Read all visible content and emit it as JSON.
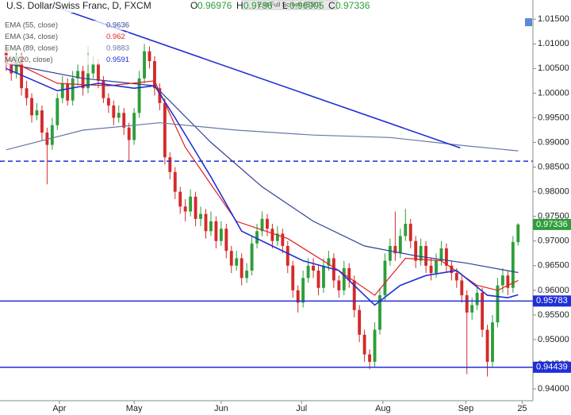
{
  "exit_fullscreen": "Exit Full Screen (ESC)",
  "chart_data": {
    "type": "candlestick",
    "title": "U.S. Dollar/Swiss Franc, D, FXCM",
    "ohlc_prefix": [
      "O",
      "H",
      "L",
      "C"
    ],
    "up_color": "#2e9e3a",
    "down_color": "#d42a2a",
    "grid": false,
    "xlim": [
      -1.2,
      102.9
    ],
    "ylim": [
      0.9376,
      1.0189
    ],
    "xticks": [
      {
        "value": 10.4,
        "label": "Apr"
      },
      {
        "value": 25,
        "label": "May"
      },
      {
        "value": 42,
        "label": "Jun"
      },
      {
        "value": 57.7,
        "label": "Jul"
      },
      {
        "value": 73.6,
        "label": "Aug"
      },
      {
        "value": 89.8,
        "label": "Sep"
      },
      {
        "value": 100.8,
        "label": "25"
      }
    ],
    "yticks": [
      {
        "value": 0.94,
        "label": "0.94000"
      },
      {
        "value": 0.945,
        "label": "0.94500"
      },
      {
        "value": 0.95,
        "label": "0.95000"
      },
      {
        "value": 0.955,
        "label": "0.95500"
      },
      {
        "value": 0.96,
        "label": "0.96000"
      },
      {
        "value": 0.965,
        "label": "0.96500"
      },
      {
        "value": 0.97,
        "label": "0.97000"
      },
      {
        "value": 0.975,
        "label": "0.97500"
      },
      {
        "value": 0.98,
        "label": "0.98000"
      },
      {
        "value": 0.985,
        "label": "0.98500"
      },
      {
        "value": 0.99,
        "label": "0.99000"
      },
      {
        "value": 0.995,
        "label": "0.99500"
      },
      {
        "value": 1.0,
        "label": "1.00000"
      },
      {
        "value": 1.005,
        "label": "1.00500"
      },
      {
        "value": 1.01,
        "label": "1.01000"
      },
      {
        "value": 1.015,
        "label": "1.01500"
      }
    ],
    "open": [
      1.0085,
      1.006,
      1.004,
      1.0075,
      1.001,
      0.999,
      0.9955,
      0.9965,
      0.992,
      0.9895,
      0.9935,
      0.999,
      1.002,
      0.9985,
      1.003,
      1.0045,
      1.001,
      1.004,
      1.006,
      1.0025,
      0.999,
      0.9975,
      0.995,
      0.996,
      0.993,
      0.9905,
      0.996,
      1.003,
      1.0085,
      1.0065,
      1.001,
      0.998,
      0.987,
      0.984,
      0.98,
      0.977,
      0.976,
      0.979,
      0.9745,
      0.9755,
      0.972,
      0.974,
      0.97,
      0.9725,
      0.968,
      0.965,
      0.9665,
      0.9625,
      0.964,
      0.9695,
      0.972,
      0.9745,
      0.9725,
      0.97,
      0.9715,
      0.969,
      0.965,
      0.96,
      0.9575,
      0.9625,
      0.965,
      0.964,
      0.9605,
      0.965,
      0.9665,
      0.962,
      0.96,
      0.9645,
      0.962,
      0.956,
      0.951,
      0.947,
      0.9455,
      0.952,
      0.959,
      0.966,
      0.969,
      0.9675,
      0.971,
      0.9735,
      0.97,
      0.966,
      0.969,
      0.965,
      0.9635,
      0.966,
      0.9685,
      0.965,
      0.9635,
      0.962,
      0.959,
      0.9555,
      0.957,
      0.9595,
      0.952,
      0.9455,
      0.9535,
      0.961,
      0.963,
      0.9605,
      0.96976
    ],
    "high": [
      1.01,
      1.0075,
      1.009,
      1.0085,
      1.0025,
      1.0,
      0.998,
      0.9975,
      0.993,
      0.995,
      1.0,
      1.0035,
      1.003,
      1.0045,
      1.006,
      1.0055,
      1.0095,
      1.0075,
      1.007,
      1.0035,
      1.0,
      0.9985,
      0.9975,
      0.997,
      0.994,
      0.997,
      1.0045,
      1.01,
      1.0095,
      1.0075,
      1.002,
      0.999,
      0.988,
      0.985,
      0.981,
      0.9785,
      0.9805,
      0.98,
      0.977,
      0.9765,
      0.976,
      0.975,
      0.974,
      0.9735,
      0.969,
      0.968,
      0.9675,
      0.9655,
      0.971,
      0.9735,
      0.976,
      0.9755,
      0.9735,
      0.973,
      0.9725,
      0.97,
      0.966,
      0.961,
      0.964,
      0.9665,
      0.9665,
      0.965,
      0.9665,
      0.968,
      0.9675,
      0.963,
      0.966,
      0.9655,
      0.963,
      0.957,
      0.952,
      0.948,
      0.9535,
      0.9605,
      0.9675,
      0.9705,
      0.976,
      0.9725,
      0.9765,
      0.9745,
      0.971,
      0.9705,
      0.97,
      0.9665,
      0.9675,
      0.97,
      0.9695,
      0.966,
      0.9645,
      0.963,
      0.96,
      0.9585,
      0.961,
      0.9605,
      0.953,
      0.955,
      0.9625,
      0.9645,
      0.964,
      0.971,
      0.9736
    ],
    "low": [
      1.0045,
      1.0025,
      1.003,
      0.9995,
      0.9975,
      0.994,
      0.9945,
      0.9905,
      0.9815,
      0.9885,
      0.9925,
      0.998,
      0.9975,
      0.9975,
      1.0015,
      0.9995,
      1.0,
      1.003,
      1.001,
      0.998,
      0.996,
      0.9935,
      0.994,
      0.9915,
      0.986,
      0.9895,
      0.995,
      1.002,
      1.005,
      0.9995,
      0.9965,
      0.9855,
      0.9825,
      0.9785,
      0.9755,
      0.974,
      0.975,
      0.973,
      0.973,
      0.9705,
      0.971,
      0.9685,
      0.969,
      0.9665,
      0.9635,
      0.964,
      0.961,
      0.9615,
      0.963,
      0.9685,
      0.971,
      0.971,
      0.9685,
      0.969,
      0.9675,
      0.9635,
      0.9585,
      0.9555,
      0.9565,
      0.9615,
      0.9625,
      0.959,
      0.9595,
      0.964,
      0.9605,
      0.9585,
      0.959,
      0.9605,
      0.9545,
      0.9495,
      0.9455,
      0.944,
      0.9445,
      0.951,
      0.958,
      0.965,
      0.966,
      0.9665,
      0.97,
      0.9685,
      0.9645,
      0.965,
      0.9635,
      0.962,
      0.9625,
      0.965,
      0.9635,
      0.962,
      0.9605,
      0.9575,
      0.943,
      0.954,
      0.956,
      0.9505,
      0.9425,
      0.9445,
      0.9525,
      0.9595,
      0.959,
      0.9595,
      0.96905
    ],
    "close": [
      1.006,
      1.004,
      1.0075,
      1.001,
      0.999,
      0.9955,
      0.9965,
      0.992,
      0.9895,
      0.9935,
      0.999,
      1.002,
      0.9985,
      1.003,
      1.0045,
      1.001,
      1.004,
      1.006,
      1.0025,
      0.999,
      0.9975,
      0.995,
      0.996,
      0.993,
      0.9905,
      0.996,
      1.003,
      1.0085,
      1.0065,
      1.001,
      0.998,
      0.987,
      0.984,
      0.98,
      0.977,
      0.976,
      0.979,
      0.9745,
      0.9755,
      0.972,
      0.974,
      0.97,
      0.9725,
      0.968,
      0.965,
      0.9665,
      0.9625,
      0.964,
      0.9695,
      0.972,
      0.9745,
      0.9725,
      0.97,
      0.9715,
      0.969,
      0.965,
      0.96,
      0.9575,
      0.9625,
      0.965,
      0.964,
      0.9605,
      0.965,
      0.9665,
      0.962,
      0.96,
      0.9645,
      0.962,
      0.956,
      0.951,
      0.947,
      0.9455,
      0.952,
      0.959,
      0.966,
      0.969,
      0.9675,
      0.971,
      0.9735,
      0.97,
      0.966,
      0.969,
      0.965,
      0.9635,
      0.966,
      0.9685,
      0.965,
      0.9635,
      0.962,
      0.959,
      0.9555,
      0.957,
      0.9595,
      0.952,
      0.9455,
      0.9535,
      0.961,
      0.963,
      0.9605,
      0.9698,
      0.97336
    ],
    "series": [
      {
        "name": "EMA (55, close)",
        "color": "#2f3f9a",
        "x": [
          0,
          15,
          29,
          40,
          50,
          60,
          70,
          80,
          90,
          100
        ],
        "values": [
          1.006,
          1.003,
          1.0015,
          0.99,
          0.981,
          0.974,
          0.969,
          0.967,
          0.9655,
          0.9636
        ]
      },
      {
        "name": "EMA (34, close)",
        "color": "#e02020",
        "x": [
          0,
          10,
          20,
          29,
          35,
          45,
          55,
          65,
          72,
          78,
          85,
          92,
          96,
          100
        ],
        "values": [
          1.007,
          1.002,
          1.0015,
          1.0025,
          0.989,
          0.974,
          0.9705,
          0.964,
          0.959,
          0.9665,
          0.966,
          0.961,
          0.96,
          0.962
        ]
      },
      {
        "name": "EMA (89, close)",
        "color": "#6677aa",
        "x": [
          0,
          15,
          30,
          45,
          60,
          75,
          90,
          100
        ],
        "values": [
          0.9885,
          0.9925,
          0.994,
          0.9925,
          0.9915,
          0.991,
          0.9893,
          0.9883
        ]
      },
      {
        "name": "MA (20, close)",
        "color": "#1f2fd6",
        "x": [
          0,
          10,
          18,
          25,
          29,
          33,
          40,
          46,
          52,
          58,
          65,
          72,
          77,
          82,
          88,
          94,
          98,
          100
        ],
        "values": [
          1.005,
          1.0005,
          1.002,
          1.001,
          1.0015,
          0.995,
          0.983,
          0.972,
          0.969,
          0.966,
          0.964,
          0.957,
          0.961,
          0.963,
          0.964,
          0.959,
          0.9585,
          0.9591
        ]
      }
    ],
    "trendline": {
      "color": "#1f2fd6",
      "x": [
        8.5,
        88.7
      ],
      "y": [
        1.0179,
        0.9889
      ]
    },
    "levels": [
      {
        "value": 0.9862,
        "style": "dashed",
        "color": "#1f2fd6",
        "badge": false
      },
      {
        "value": 0.95783,
        "style": "solid",
        "color": "#1f2fd6",
        "badge": true
      },
      {
        "value": 0.94439,
        "style": "solid",
        "color": "#1f2fd6",
        "badge": true
      }
    ]
  }
}
